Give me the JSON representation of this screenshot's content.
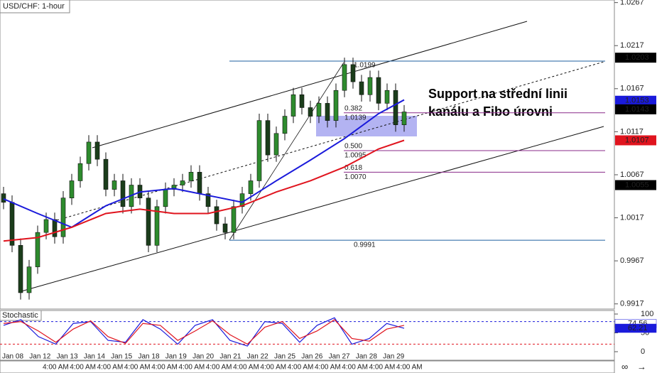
{
  "chart_data": {
    "type": "candlestick",
    "title": "USD/CHF: 1-hour",
    "annotation": [
      "Support na střední linii",
      "kanálu a Fibo úrovni"
    ],
    "up_color": "#2e8b2e",
    "down_color": "#1b3d1b",
    "open": [
      1.0045,
      1.0035,
      0.9985,
      0.993,
      0.996,
      1.0,
      1.0015,
      0.9995,
      1.004,
      1.006,
      1.008,
      1.0105,
      1.0085,
      1.005,
      1.006,
      1.003,
      1.0055,
      1.004,
      0.9985,
      1.003,
      1.005,
      1.0055,
      1.006,
      1.007,
      1.0045,
      1.003,
      1.001,
      1.0,
      1.003,
      1.0045,
      1.006,
      1.013,
      1.009,
      1.0115,
      1.0135,
      1.016,
      1.0145,
      1.0135,
      1.015,
      1.013,
      1.0165,
      1.0195,
      1.0175,
      1.016,
      1.018,
      1.015,
      1.0165,
      1.0125
    ],
    "high": [
      1.0053,
      1.0043,
      0.9993,
      0.9968,
      1.0008,
      1.0023,
      1.0023,
      1.0048,
      1.0068,
      1.0088,
      1.0113,
      1.0113,
      1.0093,
      1.0068,
      1.0068,
      1.0063,
      1.0063,
      1.0048,
      1.0038,
      1.0058,
      1.0063,
      1.0068,
      1.0078,
      1.0078,
      1.0053,
      1.0038,
      1.0018,
      1.0038,
      1.0053,
      1.0068,
      1.0138,
      1.0138,
      1.0123,
      1.0143,
      1.0168,
      1.0168,
      1.0153,
      1.0158,
      1.0158,
      1.0173,
      1.0203,
      1.0203,
      1.0183,
      1.0188,
      1.0188,
      1.0173,
      1.0173,
      1.0148
    ],
    "low": [
      1.0027,
      0.9977,
      0.9922,
      0.9922,
      0.9952,
      0.9992,
      0.9987,
      0.9987,
      1.0032,
      1.0052,
      1.0072,
      1.0077,
      1.0042,
      1.0042,
      1.0022,
      1.0022,
      1.0032,
      0.9977,
      0.9977,
      1.0022,
      1.0042,
      1.0047,
      1.0052,
      1.0037,
      1.0022,
      1.0002,
      0.9992,
      0.9992,
      1.0022,
      1.0037,
      1.0052,
      1.0082,
      1.0082,
      1.0107,
      1.0127,
      1.0137,
      1.0127,
      1.0127,
      1.0122,
      1.0122,
      1.0157,
      1.0167,
      1.0152,
      1.0152,
      1.0142,
      1.0142,
      1.0117,
      1.0117
    ],
    "close": [
      1.0035,
      0.9985,
      0.993,
      0.996,
      1.0,
      1.0015,
      0.9995,
      1.004,
      1.006,
      1.008,
      1.0105,
      1.0085,
      1.005,
      1.006,
      1.003,
      1.0055,
      1.004,
      0.9985,
      1.003,
      1.005,
      1.0055,
      1.006,
      1.007,
      1.0045,
      1.003,
      1.001,
      1.0,
      1.003,
      1.0045,
      1.006,
      1.013,
      1.009,
      1.0115,
      1.0135,
      1.016,
      1.0145,
      1.0135,
      1.015,
      1.013,
      1.0165,
      1.0195,
      1.0175,
      1.016,
      1.018,
      1.015,
      1.0165,
      1.0125,
      1.014
    ],
    "moving_averages": [
      {
        "color": "#1a1adb",
        "x": [
          0,
          4,
          8,
          12,
          16,
          20,
          24,
          28,
          32,
          36,
          40,
          44,
          47
        ],
        "values": [
          1.0039,
          1.0022,
          1.0006,
          1.0031,
          1.0047,
          1.0051,
          1.0043,
          1.0035,
          1.006,
          1.0084,
          1.0109,
          1.0138,
          1.0154
        ]
      },
      {
        "color": "#e0141e",
        "x": [
          0,
          4,
          8,
          12,
          16,
          20,
          24,
          28,
          32,
          36,
          40,
          44,
          47
        ],
        "values": [
          0.999,
          0.9994,
          1.0006,
          1.0022,
          1.0027,
          1.0022,
          1.0022,
          1.0031,
          1.0047,
          1.006,
          1.0076,
          1.0097,
          1.0107
        ]
      }
    ],
    "ylim": [
      0.9911,
      1.027
    ],
    "yticks": [
      1.0267,
      1.0217,
      1.0167,
      1.0117,
      1.0067,
      1.0017,
      0.9967,
      0.9917
    ],
    "price_tags": [
      {
        "value": 1.0203,
        "color": "#000000"
      },
      {
        "value": 1.0153,
        "color": "#1a1adb"
      },
      {
        "value": 1.0143,
        "color": "#000000"
      },
      {
        "value": 1.0107,
        "color": "#e0141e"
      },
      {
        "value": 1.0055,
        "color": "#000000"
      }
    ],
    "fib_levels": [
      {
        "price": 1.0199,
        "color": "#1f5f9f"
      },
      {
        "ratio": 0.382,
        "price": 1.0139,
        "color": "#8a2a8a"
      },
      {
        "ratio": {
          "value": 0.5,
          "label": "0.500"
        },
        "price": 1.0095,
        "color": "#8a2a8a"
      },
      {
        "ratio": 0.618,
        "price": {
          "value": 1.007,
          "label": "1.0070"
        },
        "color": "#8a2a8a"
      },
      {
        "price": 0.9991,
        "color": "#1f5f9f"
      }
    ],
    "x_labels": [
      "Jan 08",
      "Jan 12",
      "Jan 13",
      "Jan 14",
      "Jan 15",
      "Jan 18",
      "Jan 19",
      "Jan 20",
      "Jan 21",
      "Jan 22",
      "Jan 25",
      "Jan 26",
      "Jan 27",
      "Jan 28",
      "Jan 29"
    ],
    "time_labels": [
      "4:00 AM",
      "4:00 AM",
      "4:00 AM",
      "4:00 AM",
      "4:00 AM",
      "4:00 AM",
      "4:00 AM",
      "4:00 AM",
      "4:00 AM",
      "4:00 AM",
      "4:00 AM",
      "4:00 AM",
      "4:00 AM",
      "4:00 AM"
    ],
    "stochastic": {
      "title": "Stochastic",
      "ylim": [
        0,
        100
      ],
      "yticks": [
        100,
        50,
        0
      ],
      "levels": [
        {
          "value": 80,
          "color": "#1a1adb"
        },
        {
          "value": 20,
          "color": "#e0141e"
        }
      ],
      "series": [
        {
          "color": "#1a1adb",
          "values": [
            70,
            85,
            40,
            20,
            75,
            80,
            30,
            25,
            85,
            60,
            20,
            70,
            85,
            30,
            15,
            80,
            75,
            25,
            70,
            90,
            20,
            35,
            75,
            62.21
          ]
        },
        {
          "color": "#e0141e",
          "values": [
            75,
            80,
            55,
            25,
            60,
            82,
            40,
            22,
            75,
            70,
            30,
            55,
            82,
            45,
            20,
            65,
            80,
            35,
            55,
            85,
            35,
            28,
            60,
            70
          ]
        }
      ],
      "tags": [
        {
          "value": 74.56,
          "color": "#ffffff",
          "text_color": "#1a1adb"
        },
        {
          "value": 62.21,
          "color": "#1a1adb",
          "text_color": "#ffffff"
        }
      ]
    }
  }
}
